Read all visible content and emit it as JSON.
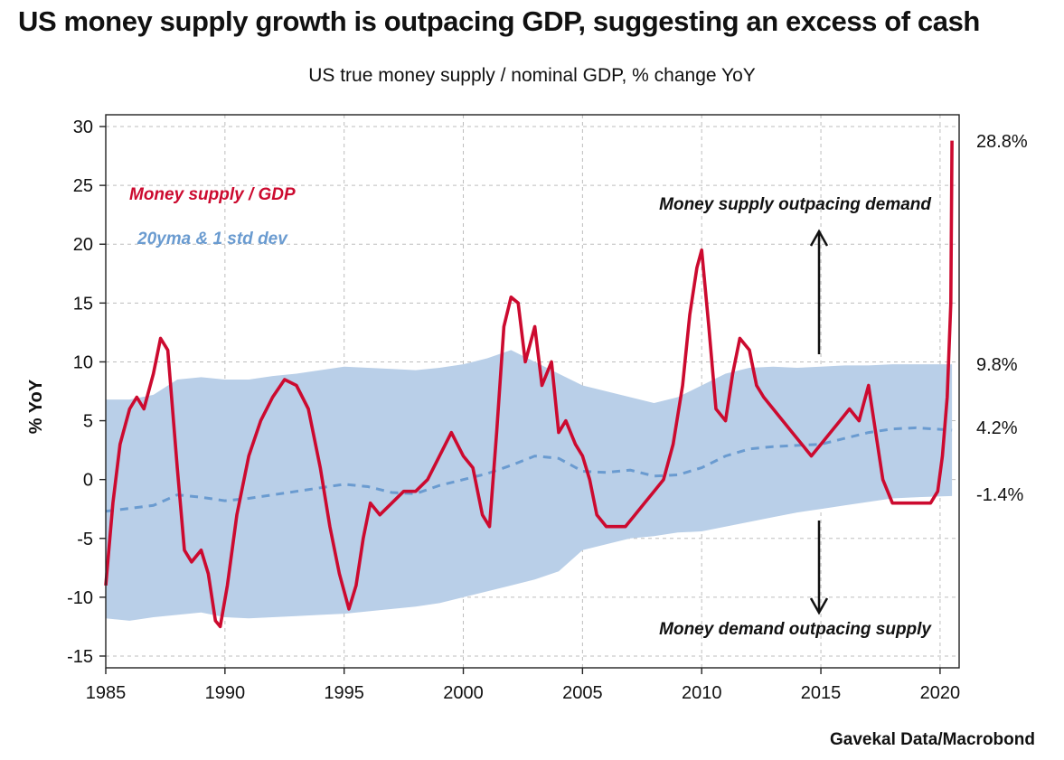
{
  "title": "US money supply growth is outpacing GDP, suggesting an excess of cash",
  "subtitle": "US true money supply / nominal GDP, % change YoY",
  "source": "Gavekal Data/Macrobond",
  "colors": {
    "series": "#cc0a2f",
    "band": "#b9cfe8",
    "mean": "#6a9bd0",
    "grid": "#bdbdbd"
  },
  "chart_data": {
    "type": "line",
    "ylabel": "% YoY",
    "xlim": [
      1985,
      2020.8
    ],
    "ylim": [
      -16,
      31
    ],
    "yticks": [
      30,
      25,
      20,
      15,
      10,
      5,
      0,
      -5,
      -10,
      -15
    ],
    "xticks": [
      1985,
      1990,
      1995,
      2000,
      2005,
      2010,
      2015,
      2020
    ],
    "grid": true,
    "legend": {
      "placement": "top-left",
      "series_label": "Money supply / GDP",
      "band_label": "20yma & 1 std dev"
    },
    "annotations": {
      "up": "Money supply outpacing demand",
      "down": "Money demand outpacing supply"
    },
    "end_labels": {
      "series": "28.8%",
      "upper": "9.8%",
      "mean": "4.2%",
      "lower": "-1.4%"
    },
    "series": [
      {
        "name": "Money supply / GDP",
        "x": [
          1985,
          1985.3,
          1985.6,
          1986,
          1986.3,
          1986.6,
          1987,
          1987.3,
          1987.6,
          1988,
          1988.3,
          1988.6,
          1989,
          1989.3,
          1989.6,
          1989.8,
          1990.1,
          1990.5,
          1991,
          1991.5,
          1992,
          1992.5,
          1993,
          1993.5,
          1994,
          1994.4,
          1994.8,
          1995.2,
          1995.5,
          1995.8,
          1996.1,
          1996.5,
          1997,
          1997.5,
          1998,
          1998.5,
          1999,
          1999.5,
          2000,
          2000.4,
          2000.8,
          2001.1,
          2001.4,
          2001.7,
          2002,
          2002.3,
          2002.6,
          2003,
          2003.3,
          2003.7,
          2004,
          2004.3,
          2004.7,
          2005,
          2005.3,
          2005.6,
          2006,
          2006.4,
          2006.8,
          2007.2,
          2007.6,
          2008,
          2008.4,
          2008.8,
          2009.2,
          2009.5,
          2009.8,
          2010,
          2010.3,
          2010.6,
          2011,
          2011.3,
          2011.6,
          2012,
          2012.3,
          2012.6,
          2013,
          2013.4,
          2013.8,
          2014.2,
          2014.6,
          2015,
          2015.4,
          2015.8,
          2016.2,
          2016.6,
          2017,
          2017.3,
          2017.6,
          2018,
          2018.4,
          2018.8,
          2019.2,
          2019.6,
          2019.9,
          2020.1,
          2020.3,
          2020.45,
          2020.5
        ],
        "y": [
          -9,
          -2,
          3,
          6,
          7,
          6,
          9,
          12,
          11,
          1,
          -6,
          -7,
          -6,
          -8,
          -12,
          -12.5,
          -9,
          -3,
          2,
          5,
          7,
          8.5,
          8,
          6,
          1,
          -4,
          -8,
          -11,
          -9,
          -5,
          -2,
          -3,
          -2,
          -1,
          -1,
          0,
          2,
          4,
          2,
          1,
          -3,
          -4,
          4,
          13,
          15.5,
          15,
          10,
          13,
          8,
          10,
          4,
          5,
          3,
          2,
          0,
          -3,
          -4,
          -4,
          -4,
          -3,
          -2,
          -1,
          0,
          3,
          8,
          14,
          18,
          19.5,
          13,
          6,
          5,
          9,
          12,
          11,
          8,
          7,
          6,
          5,
          4,
          3,
          2,
          3,
          4,
          5,
          6,
          5,
          8,
          4,
          0,
          -2,
          -2,
          -2,
          -2,
          -2,
          -1,
          2,
          7,
          15,
          28.8
        ]
      },
      {
        "name": "20yma",
        "x": [
          1985,
          1987,
          1988,
          1989,
          1990,
          1991,
          1992,
          1993,
          1994,
          1995,
          1996,
          1997,
          1998,
          1999,
          2000,
          2001,
          2002,
          2003,
          2004,
          2005,
          2006,
          2007,
          2008,
          2009,
          2010,
          2011,
          2012,
          2013,
          2014,
          2015,
          2016,
          2017,
          2018,
          2019,
          2020.5
        ],
        "y": [
          -2.7,
          -2.2,
          -1.3,
          -1.5,
          -1.8,
          -1.6,
          -1.3,
          -1,
          -0.7,
          -0.4,
          -0.6,
          -1.1,
          -1.2,
          -0.5,
          0,
          0.5,
          1.2,
          2,
          1.8,
          0.7,
          0.6,
          0.8,
          0.3,
          0.4,
          1,
          2,
          2.6,
          2.8,
          2.9,
          3,
          3.5,
          4,
          4.3,
          4.4,
          4.2
        ]
      },
      {
        "name": "+1 std dev",
        "x": [
          1985,
          1986,
          1987,
          1988,
          1989,
          1990,
          1991,
          1992,
          1993,
          1994,
          1995,
          1996,
          1997,
          1998,
          1999,
          2000,
          2001,
          2002,
          2003,
          2004,
          2005,
          2006,
          2007,
          2008,
          2009,
          2010,
          2011,
          2012,
          2013,
          2014,
          2015,
          2016,
          2017,
          2018,
          2019,
          2020.5
        ],
        "y": [
          6.8,
          6.8,
          7.2,
          8.5,
          8.7,
          8.5,
          8.5,
          8.8,
          9,
          9.3,
          9.6,
          9.5,
          9.4,
          9.3,
          9.5,
          9.8,
          10.3,
          11,
          10,
          9,
          8,
          7.5,
          7,
          6.5,
          7,
          8,
          9,
          9.5,
          9.6,
          9.5,
          9.6,
          9.7,
          9.7,
          9.8,
          9.8,
          9.8
        ]
      },
      {
        "name": "-1 std dev",
        "x": [
          1985,
          1986,
          1987,
          1988,
          1989,
          1990,
          1991,
          1992,
          1993,
          1994,
          1995,
          1996,
          1997,
          1998,
          1999,
          2000,
          2001,
          2002,
          2003,
          2004,
          2005,
          2006,
          2007,
          2008,
          2009,
          2010,
          2011,
          2012,
          2013,
          2014,
          2015,
          2016,
          2017,
          2018,
          2019,
          2020.5
        ],
        "y": [
          -11.8,
          -12,
          -11.7,
          -11.5,
          -11.3,
          -11.7,
          -11.8,
          -11.7,
          -11.6,
          -11.5,
          -11.4,
          -11.2,
          -11,
          -10.8,
          -10.5,
          -10,
          -9.5,
          -9,
          -8.5,
          -7.8,
          -6,
          -5.5,
          -5,
          -4.8,
          -4.5,
          -4.4,
          -4,
          -3.6,
          -3.2,
          -2.8,
          -2.5,
          -2.2,
          -1.9,
          -1.6,
          -1.5,
          -1.4
        ]
      }
    ]
  }
}
